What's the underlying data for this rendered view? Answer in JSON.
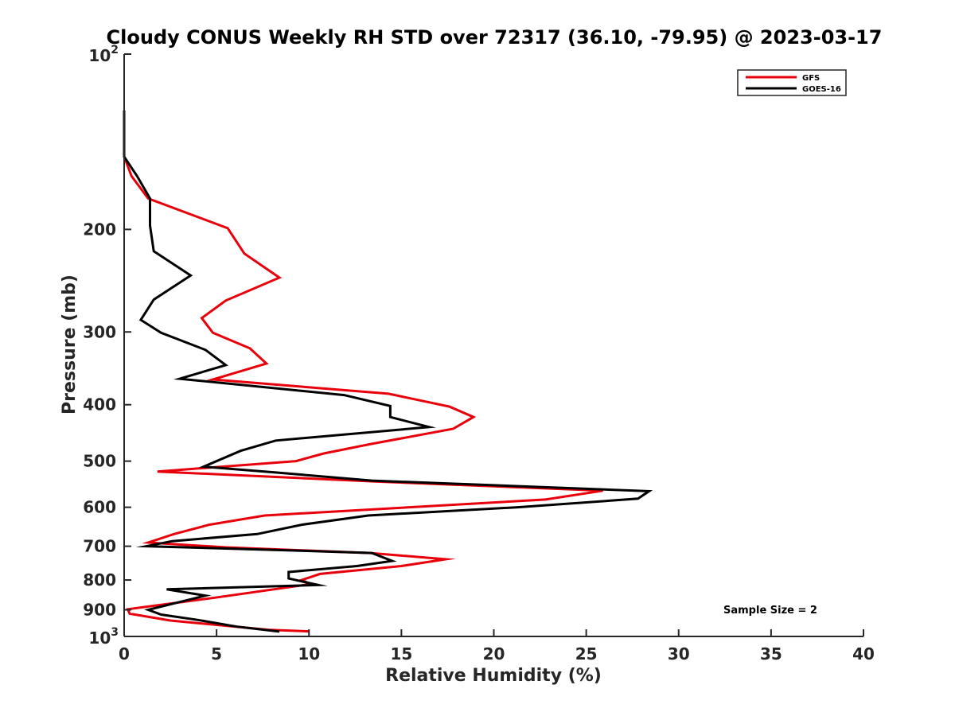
{
  "chart_data": {
    "type": "line",
    "title": "Cloudy CONUS Weekly RH STD over 72317 (36.10, -79.95) @ 2023-03-17",
    "xlabel": "Relative Humidity (%)",
    "ylabel": "Pressure (mb)",
    "xlim": [
      0,
      40
    ],
    "ylim": [
      100,
      1000
    ],
    "y_scale": "log",
    "y_reversed": true,
    "grid": false,
    "legend_position": "top-right",
    "x_ticks": [
      "0",
      "5",
      "10",
      "15",
      "20",
      "25",
      "30",
      "35",
      "40"
    ],
    "y_ticks": [
      {
        "value": 100,
        "base": "10",
        "exp": "2"
      },
      {
        "value": 200,
        "label": "200"
      },
      {
        "value": 300,
        "label": "300"
      },
      {
        "value": 400,
        "label": "400"
      },
      {
        "value": 500,
        "label": "500"
      },
      {
        "value": 600,
        "label": "600"
      },
      {
        "value": 700,
        "label": "700"
      },
      {
        "value": 800,
        "label": "800"
      },
      {
        "value": 900,
        "label": "900"
      },
      {
        "value": 1000,
        "base": "10",
        "exp": "3"
      }
    ],
    "series": [
      {
        "name": "GFS",
        "color": "#e8000b",
        "points": [
          [
            0.0,
            125
          ],
          [
            0.0,
            150
          ],
          [
            0.4,
            162
          ],
          [
            1.3,
            177
          ],
          [
            5.6,
            199
          ],
          [
            6.5,
            220
          ],
          [
            8.4,
            242
          ],
          [
            5.5,
            265
          ],
          [
            4.2,
            284
          ],
          [
            4.8,
            301
          ],
          [
            6.8,
            320
          ],
          [
            7.7,
            340
          ],
          [
            4.8,
            362
          ],
          [
            14.3,
            383
          ],
          [
            17.6,
            403
          ],
          [
            18.9,
            420
          ],
          [
            17.8,
            440
          ],
          [
            13.4,
            467
          ],
          [
            10.8,
            485
          ],
          [
            9.3,
            500
          ],
          [
            1.8,
            521
          ],
          [
            13.6,
            542
          ],
          [
            25.9,
            562
          ],
          [
            22.8,
            582
          ],
          [
            7.6,
            620
          ],
          [
            4.6,
            643
          ],
          [
            2.7,
            667
          ],
          [
            1.3,
            690
          ],
          [
            5.5,
            703
          ],
          [
            13.3,
            719
          ],
          [
            17.4,
            737
          ],
          [
            15.0,
            757
          ],
          [
            10.6,
            781
          ],
          [
            9.6,
            800
          ],
          [
            10.1,
            813
          ],
          [
            4.9,
            858
          ],
          [
            0.2,
            898
          ],
          [
            0.3,
            914
          ],
          [
            2.5,
            939
          ],
          [
            7.8,
            974
          ],
          [
            10.0,
            980
          ]
        ]
      },
      {
        "name": "GOES-16",
        "color": "#000000",
        "points": [
          [
            0.0,
            125
          ],
          [
            0.0,
            150
          ],
          [
            0.7,
            162
          ],
          [
            1.4,
            177
          ],
          [
            1.4,
            197
          ],
          [
            1.6,
            218
          ],
          [
            3.6,
            240
          ],
          [
            1.6,
            264
          ],
          [
            0.9,
            286
          ],
          [
            2.0,
            301
          ],
          [
            4.4,
            322
          ],
          [
            5.5,
            342
          ],
          [
            3.0,
            361
          ],
          [
            11.9,
            385
          ],
          [
            14.4,
            402
          ],
          [
            14.4,
            420
          ],
          [
            16.5,
            437
          ],
          [
            8.2,
            461
          ],
          [
            6.3,
            480
          ],
          [
            4.3,
            511
          ],
          [
            8.2,
            523
          ],
          [
            13.4,
            540
          ],
          [
            28.4,
            563
          ],
          [
            27.8,
            580
          ],
          [
            21.3,
            600
          ],
          [
            13.2,
            620
          ],
          [
            9.6,
            643
          ],
          [
            7.2,
            667
          ],
          [
            2.6,
            686
          ],
          [
            1.2,
            700
          ],
          [
            9.9,
            713
          ],
          [
            13.4,
            719
          ],
          [
            14.5,
            742
          ],
          [
            12.6,
            757
          ],
          [
            8.9,
            775
          ],
          [
            8.9,
            795
          ],
          [
            10.5,
            816
          ],
          [
            2.3,
            830
          ],
          [
            4.4,
            851
          ],
          [
            1.3,
            900
          ],
          [
            2.0,
            917
          ],
          [
            4.0,
            937
          ],
          [
            6.1,
            962
          ],
          [
            8.4,
            981
          ]
        ]
      }
    ],
    "annotations": [
      "Sample Size = 2"
    ]
  }
}
